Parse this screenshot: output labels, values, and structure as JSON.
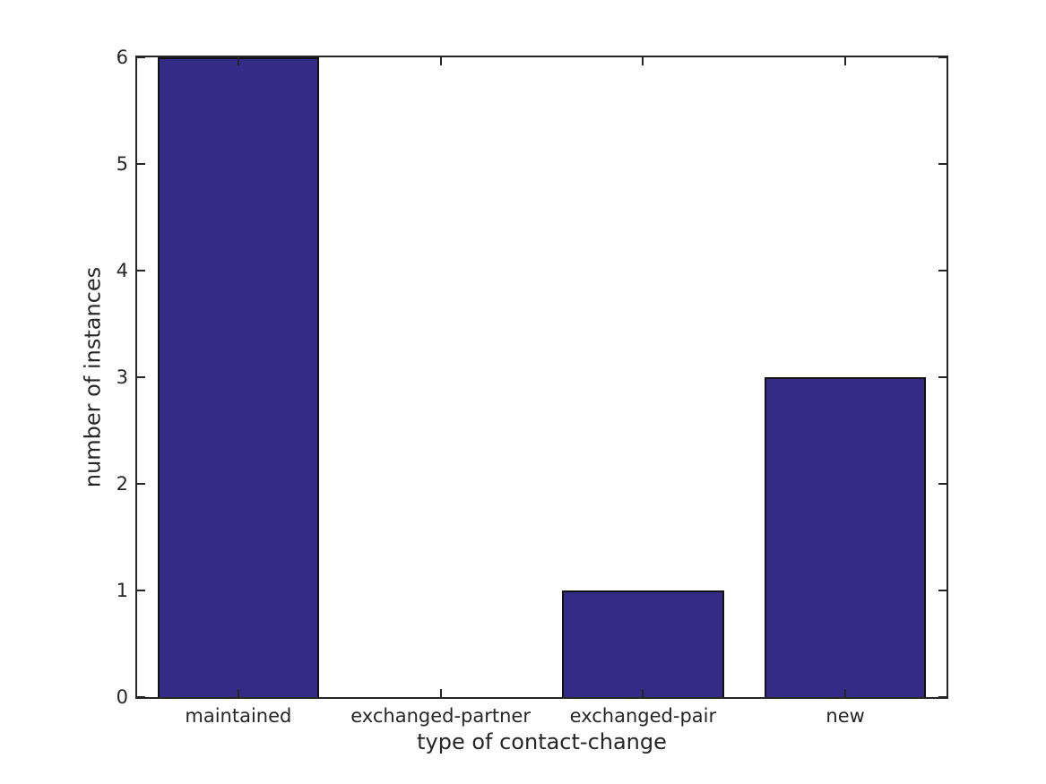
{
  "chart_data": {
    "type": "bar",
    "title": "",
    "categories": [
      "maintained",
      "exchanged-partner",
      "exchanged-pair",
      "new"
    ],
    "values": [
      6,
      0,
      1,
      3
    ],
    "xlabel": "type of contact-change",
    "ylabel": "number of instances",
    "ylim": [
      0,
      6
    ],
    "yticks": [
      0,
      1,
      2,
      3,
      4,
      5,
      6
    ],
    "bar_width_fraction": 0.8,
    "bar_color": "#342b87",
    "bar_edge_color": "#111111",
    "axis_color": "#262626",
    "background_color": "#ffffff",
    "grid": false,
    "legend": false,
    "box": true,
    "tick_direction": "in"
  }
}
